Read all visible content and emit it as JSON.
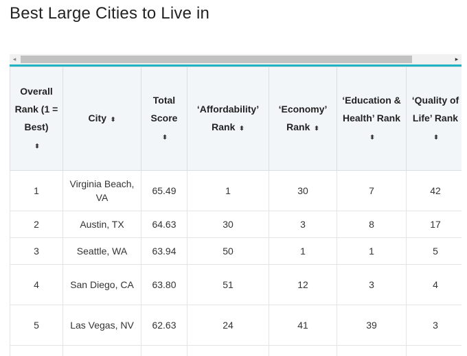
{
  "page": {
    "title": "Best Large Cities to Live in"
  },
  "scrollbar": {
    "left_icon": "◂",
    "right_icon": "▸"
  },
  "table": {
    "headers": [
      "Overall Rank (1 = Best)",
      "City",
      "Total Score",
      "‘Affordability’ Rank",
      "‘Economy’ Rank",
      "‘Education & Health’ Rank",
      "‘Quality of Life’ Rank"
    ],
    "sort_icon": "⬍",
    "rows": [
      [
        "1",
        "Virginia Beach, VA",
        "65.49",
        "1",
        "30",
        "7",
        "42"
      ],
      [
        "2",
        "Austin, TX",
        "64.63",
        "30",
        "3",
        "8",
        "17"
      ],
      [
        "3",
        "Seattle, WA",
        "63.94",
        "50",
        "1",
        "1",
        "5"
      ],
      [
        "4",
        "San Diego, CA",
        "63.80",
        "51",
        "12",
        "3",
        "4"
      ],
      [
        "5",
        "Las Vegas, NV",
        "62.63",
        "24",
        "41",
        "39",
        "3"
      ],
      [
        "",
        "",
        "",
        "",
        "",
        "",
        ""
      ]
    ]
  },
  "colors": {
    "accent": "#1fb3c4",
    "header_bg": "#f2f6f9",
    "scroll_thumb": "#c1c1c1"
  }
}
